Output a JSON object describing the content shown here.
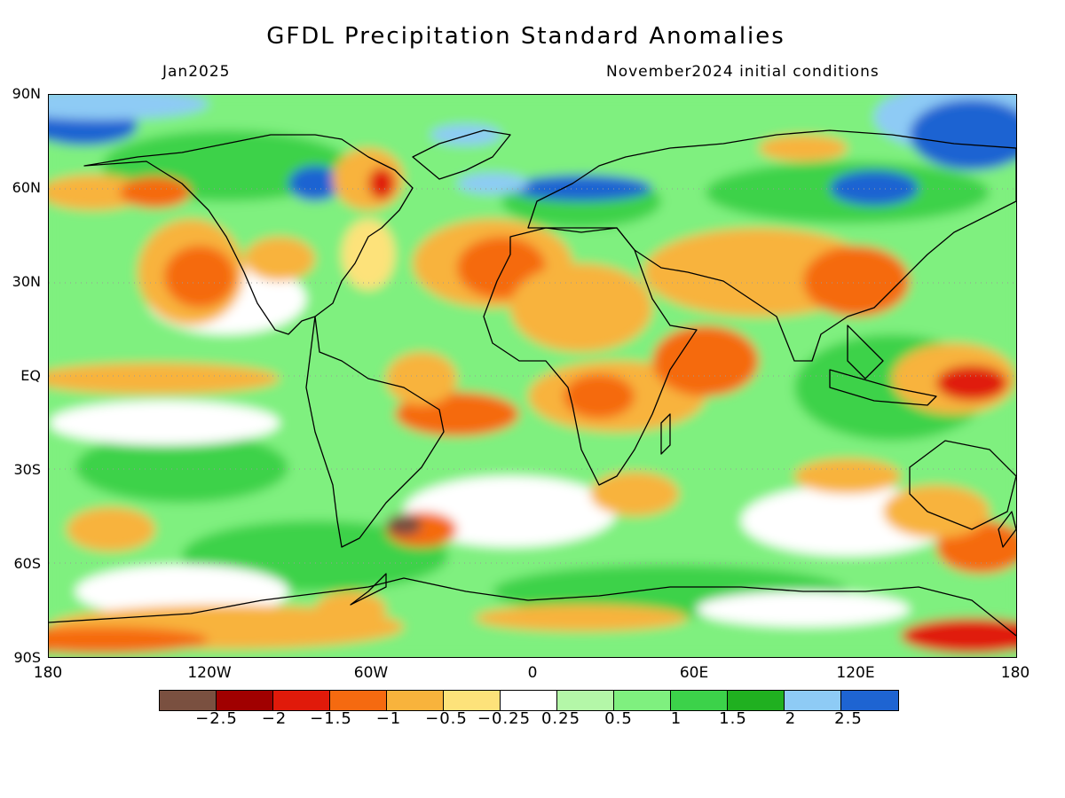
{
  "title": "GFDL Precipitation Standard Anomalies",
  "valid_month": "Jan2025",
  "initial_conditions": "November2024 initial conditions",
  "lat_labels": [
    "90N",
    "60N",
    "30N",
    "EQ",
    "30S",
    "60S",
    "90S"
  ],
  "lon_labels": [
    "180",
    "120W",
    "60W",
    "0",
    "60E",
    "120E",
    "180"
  ],
  "colorbar": {
    "levels": [
      "-2.5",
      "-2",
      "-1.5",
      "-1",
      "-0.5",
      "-0.25",
      "0.25",
      "0.5",
      "1",
      "1.5",
      "2",
      "2.5"
    ],
    "colors": [
      "#7a5040",
      "#a00000",
      "#e01a0a",
      "#f56a10",
      "#f8b33c",
      "#fde27a",
      "#ffffff",
      "#b4f7a8",
      "#7ff07f",
      "#3cd24a",
      "#20b020",
      "#8ecbf5",
      "#1e64d2"
    ]
  }
}
